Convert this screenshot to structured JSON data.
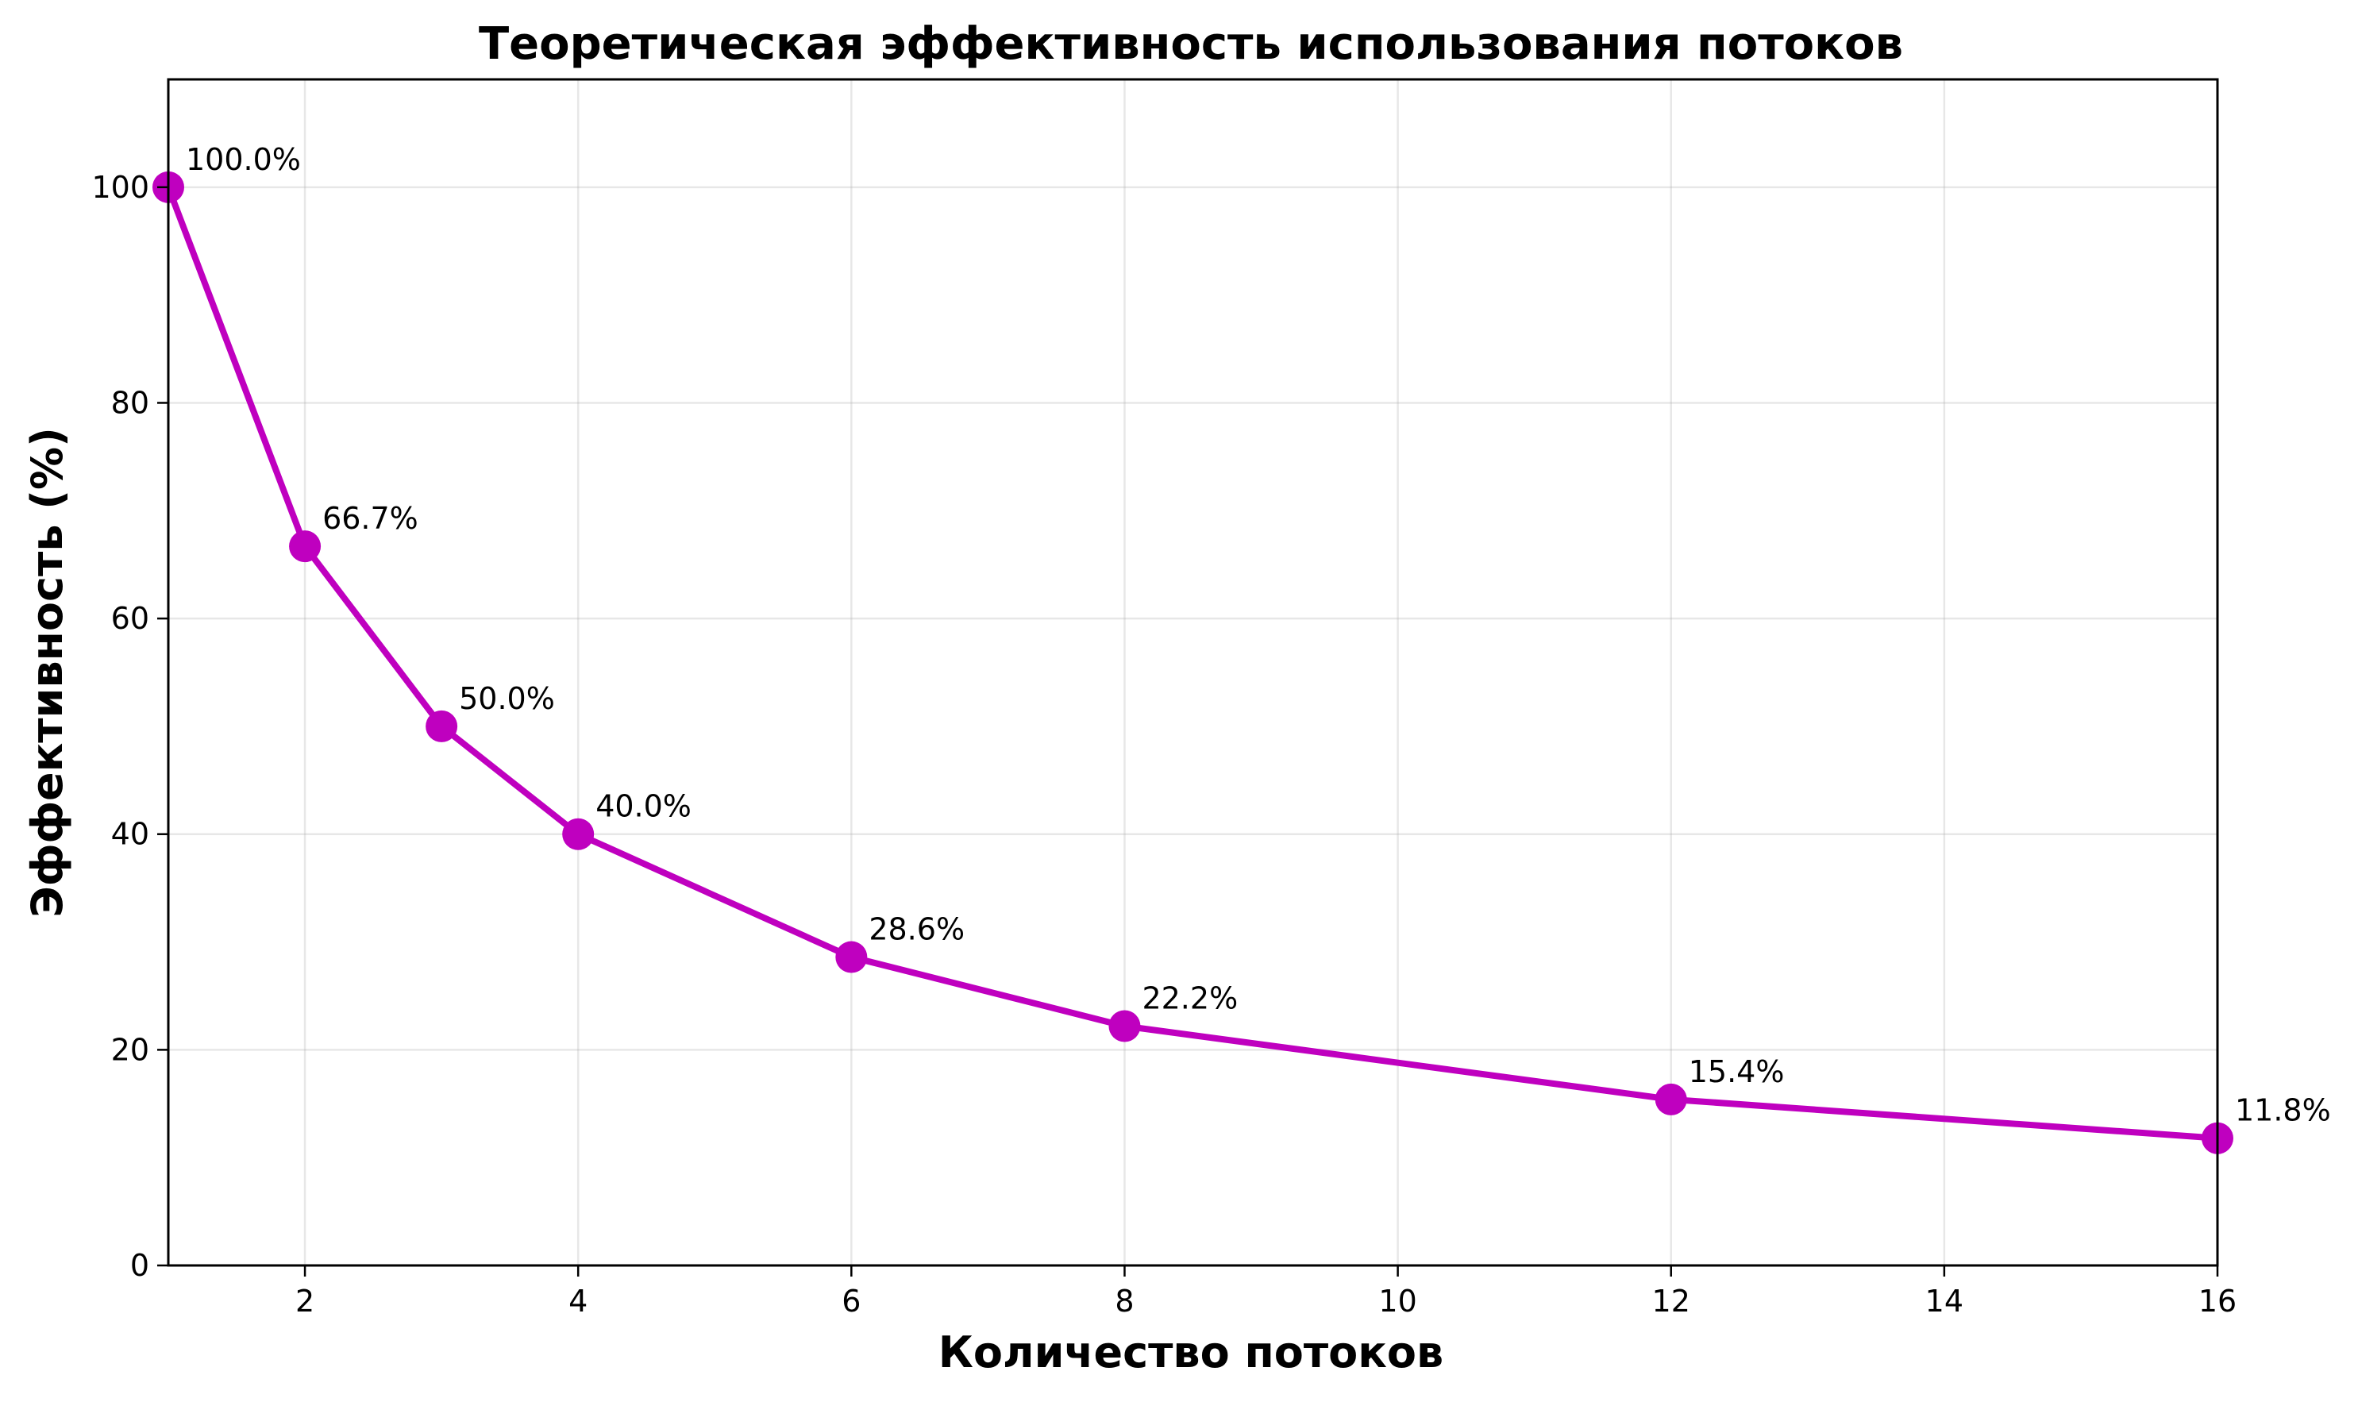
{
  "chart_data": {
    "type": "line",
    "title": "Теоретическая эффективность использования потоков",
    "xlabel": "Количество потоков",
    "ylabel": "Эффективность (%)",
    "xlim": [
      1,
      16
    ],
    "ylim": [
      0,
      110
    ],
    "xticks": [
      2,
      4,
      6,
      8,
      10,
      12,
      14,
      16
    ],
    "yticks": [
      0,
      20,
      40,
      60,
      80,
      100
    ],
    "grid": true,
    "legend": "none",
    "series": [
      {
        "color": "#bf00bf",
        "marker": "circle",
        "x": [
          1,
          2,
          3,
          4,
          6,
          8,
          12,
          16
        ],
        "y": [
          100.0,
          66.7,
          50.0,
          40.0,
          28.6,
          22.2,
          15.4,
          11.8
        ],
        "labels": [
          "100.0%",
          "66.7%",
          "50.0%",
          "40.0%",
          "28.6%",
          "22.2%",
          "15.4%",
          "11.8%"
        ]
      }
    ]
  }
}
